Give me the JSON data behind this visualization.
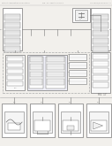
{
  "bg_color": "#f2f0ec",
  "lc": "#777777",
  "fc_white": "#ffffff",
  "fc_light": "#f5f5f5",
  "tc": "#555555",
  "header_color": "#999999"
}
